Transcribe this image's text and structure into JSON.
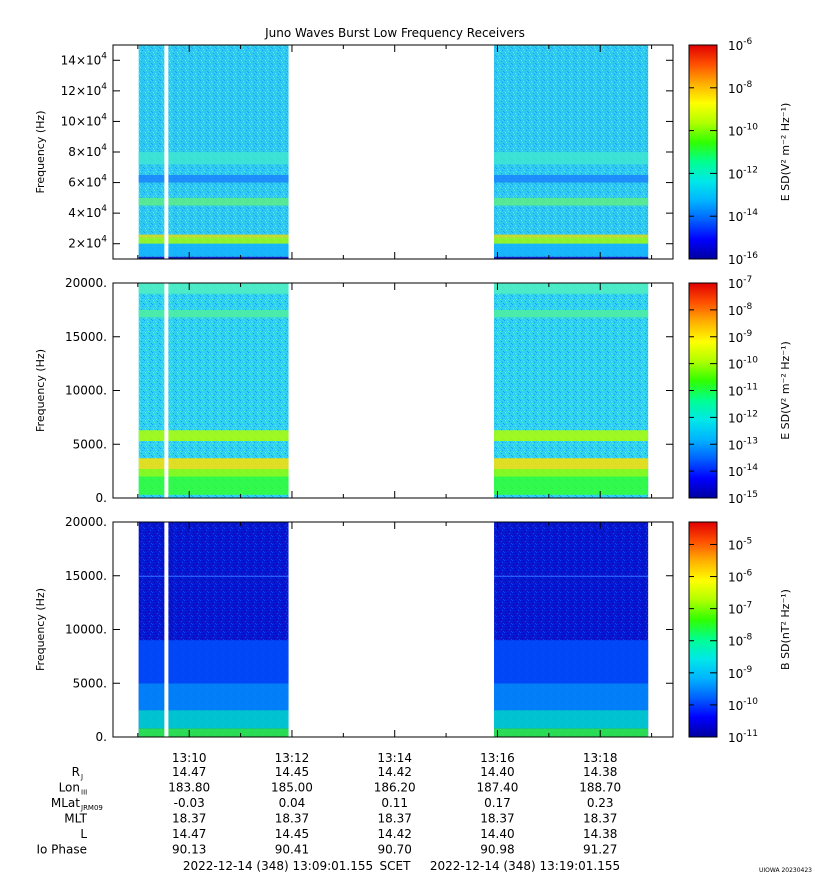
{
  "title": "Juno Waves Burst Low Frequency Receivers",
  "watermark": "UIOWA 20230423",
  "colormap": [
    "#0000a0",
    "#0000ff",
    "#0060ff",
    "#00b4ff",
    "#00e8e8",
    "#00ff90",
    "#30ff00",
    "#b0ff00",
    "#ffff00",
    "#ffb000",
    "#ff5000",
    "#e00000"
  ],
  "chart_data": [
    {
      "type": "heatmap",
      "panel": "top",
      "ylabel": "Frequency (Hz)",
      "y_ticks": [
        {
          "value": 20000,
          "mant": "2×10",
          "exp": "4"
        },
        {
          "value": 40000,
          "mant": "4×10",
          "exp": "4"
        },
        {
          "value": 60000,
          "mant": "6×10",
          "exp": "4"
        },
        {
          "value": 80000,
          "mant": "8×10",
          "exp": "4"
        },
        {
          "value": 100000,
          "mant": "10×10",
          "exp": "4"
        },
        {
          "value": 120000,
          "mant": "12×10",
          "exp": "4"
        },
        {
          "value": 140000,
          "mant": "14×10",
          "exp": "4"
        }
      ],
      "ylim": [
        10000,
        150000
      ],
      "colorbar_label": "E SD(V² m⁻² Hz⁻¹)",
      "colorbar_ticks": [
        {
          "value": -16,
          "exp": "-16"
        },
        {
          "value": -14,
          "exp": "-14"
        },
        {
          "value": -12,
          "exp": "-12"
        },
        {
          "value": -10,
          "exp": "-10"
        },
        {
          "value": -8,
          "exp": "-8"
        },
        {
          "value": -6,
          "exp": "-6"
        }
      ],
      "colorbar_range": [
        -16,
        -6
      ],
      "data_intervals": [
        [
          "13:09:01",
          "13:11:56"
        ],
        [
          "13:15:56",
          "13:18:56"
        ]
      ],
      "gap": "13:09:31"
    },
    {
      "type": "heatmap",
      "panel": "middle",
      "ylabel": "Frequency (Hz)",
      "y_ticks": [
        {
          "value": 0,
          "label": "0."
        },
        {
          "value": 5000,
          "label": "5000."
        },
        {
          "value": 10000,
          "label": "10000."
        },
        {
          "value": 15000,
          "label": "15000."
        },
        {
          "value": 20000,
          "label": "20000."
        }
      ],
      "ylim": [
        0,
        20000
      ],
      "colorbar_label": "E SD(V² m⁻² Hz⁻¹)",
      "colorbar_ticks": [
        {
          "value": -15,
          "exp": "-15"
        },
        {
          "value": -14,
          "exp": "-14"
        },
        {
          "value": -13,
          "exp": "-13"
        },
        {
          "value": -12,
          "exp": "-12"
        },
        {
          "value": -11,
          "exp": "-11"
        },
        {
          "value": -10,
          "exp": "-10"
        },
        {
          "value": -9,
          "exp": "-9"
        },
        {
          "value": -8,
          "exp": "-8"
        },
        {
          "value": -7,
          "exp": "-7"
        }
      ],
      "colorbar_range": [
        -15,
        -7
      ],
      "data_intervals": [
        [
          "13:09:01",
          "13:11:56"
        ],
        [
          "13:15:56",
          "13:18:56"
        ]
      ],
      "gap": "13:09:31"
    },
    {
      "type": "heatmap",
      "panel": "bottom",
      "ylabel": "Frequency (Hz)",
      "y_ticks": [
        {
          "value": 0,
          "label": "0."
        },
        {
          "value": 5000,
          "label": "5000."
        },
        {
          "value": 10000,
          "label": "10000."
        },
        {
          "value": 15000,
          "label": "15000."
        },
        {
          "value": 20000,
          "label": "20000."
        }
      ],
      "ylim": [
        0,
        20000
      ],
      "colorbar_label": "B SD(nT² Hz⁻¹)",
      "colorbar_ticks": [
        {
          "value": -11,
          "exp": "-11"
        },
        {
          "value": -10,
          "exp": "-10"
        },
        {
          "value": -9,
          "exp": "-9"
        },
        {
          "value": -8,
          "exp": "-8"
        },
        {
          "value": -7,
          "exp": "-7"
        },
        {
          "value": -6,
          "exp": "-6"
        },
        {
          "value": -5,
          "exp": "-5"
        }
      ],
      "colorbar_range": [
        -11,
        -4.3
      ],
      "data_intervals": [
        [
          "13:09:01",
          "13:11:56"
        ],
        [
          "13:15:56",
          "13:18:56"
        ]
      ],
      "gap": "13:09:31"
    }
  ],
  "x_axis": {
    "ticks": [
      "13:10",
      "13:12",
      "13:14",
      "13:16",
      "13:18"
    ],
    "rows": [
      {
        "label": "R",
        "sub": "J",
        "values": [
          "14.47",
          "14.45",
          "14.42",
          "14.40",
          "14.38"
        ]
      },
      {
        "label": "Lon",
        "sub": "III",
        "values": [
          "183.80",
          "185.00",
          "186.20",
          "187.40",
          "188.70"
        ]
      },
      {
        "label": "MLat",
        "sub": "JRM09",
        "values": [
          "-0.03",
          "0.04",
          "0.11",
          "0.17",
          "0.23"
        ]
      },
      {
        "label": "MLT",
        "sub": "",
        "values": [
          "18.37",
          "18.37",
          "18.37",
          "18.37",
          "18.37"
        ]
      },
      {
        "label": "L",
        "sub": "",
        "values": [
          "14.47",
          "14.45",
          "14.42",
          "14.40",
          "14.38"
        ]
      },
      {
        "label": "Io Phase",
        "sub": "",
        "values": [
          "90.13",
          "90.41",
          "90.70",
          "90.98",
          "91.27"
        ]
      }
    ],
    "start": "2022-12-14 (348) 13:09:01.155",
    "scet": "SCET",
    "end": "2022-12-14 (348) 13:19:01.155"
  }
}
